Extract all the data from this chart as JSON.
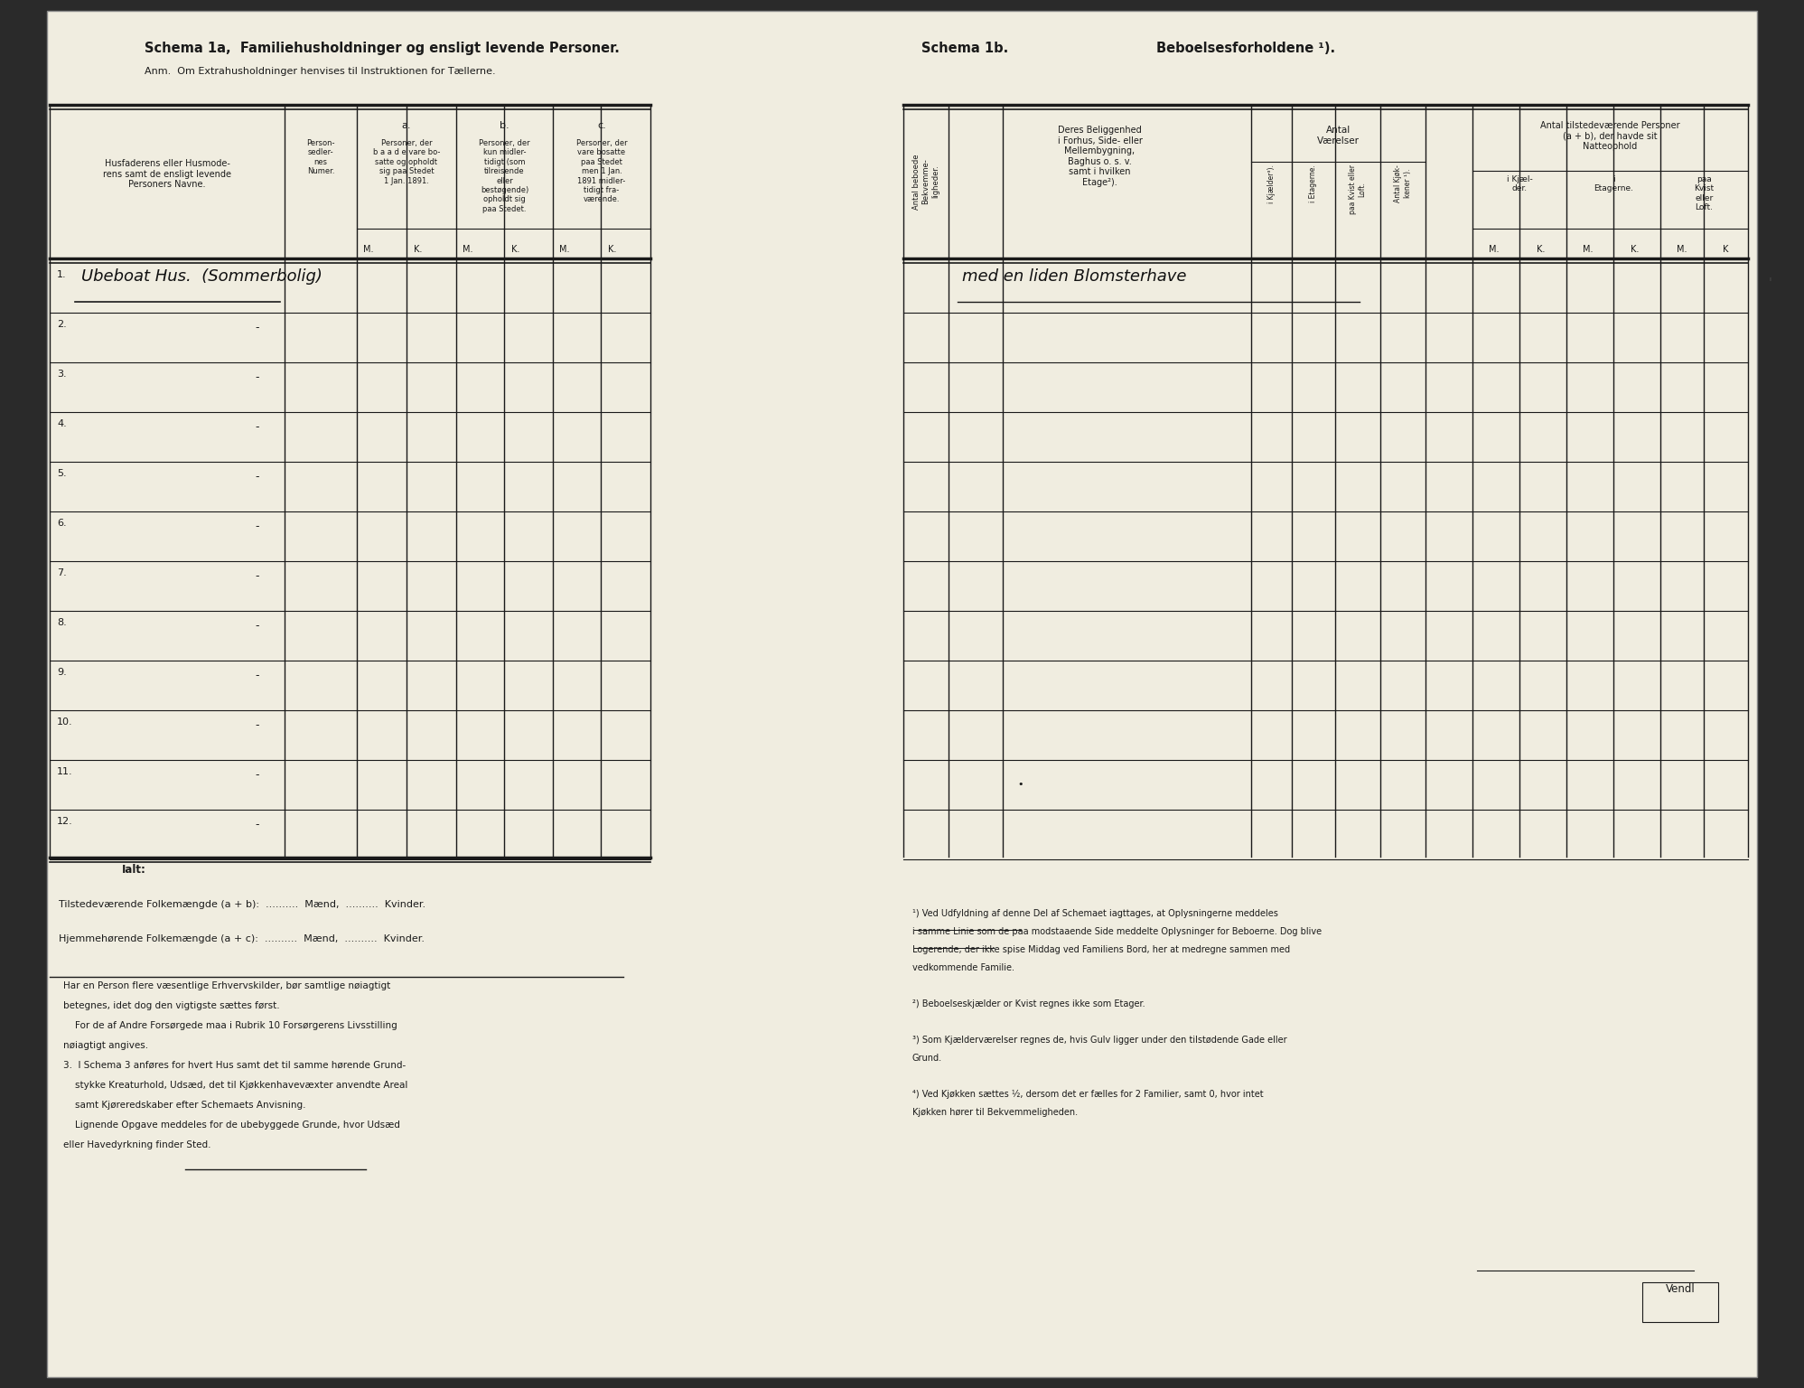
{
  "page_bg": "#f0ede0",
  "outer_bg": "#2a2a2a",
  "text_color": "#1a1a1a",
  "line_color": "#1a1a1a",
  "title_left": "Schema 1a,  Familiehusholdninger og ensligt levende Personer.",
  "anm_left": "Anm.  Om Extrahusholdninger henvises til Instruktionen for Tællerne.",
  "title_right_1": "Schema 1b.",
  "title_right_2": "Beboelsesforholdene ¹).",
  "row_numbers": [
    "1.",
    "2.",
    "3.",
    "4.",
    "5.",
    "6.",
    "7.",
    "8.",
    "9.",
    "10.",
    "11.",
    "12."
  ],
  "row1_name_left": "Ubeboat Hus.  (Sommerbolig)",
  "ialt_label": "Ialt:",
  "tilstedev_line": "Tilstedeværende Folkemængde (a + b):  ..........  Mænd,  ..........  Kvinder.",
  "hjemmeh_line": "Hjemmehørende Folkemængde (a + c):  ..........  Mænd,  ..........  Kvinder.",
  "fn_left_1": "Har en Person flere væsentlige Erhvervskilder, bør samtlige nøiagtigt",
  "fn_left_2": "betegnes, idet dog den vigtigste sættes først.",
  "fn_left_3": "    For de af Andre Forsørgede maa i Rubrik 10 Forsørgerens Livsstilling",
  "fn_left_4": "nøiagtigt angives.",
  "fn_left_5": "3.  I Schema 3 anføres for hvert Hus samt det til samme hørende Grund-",
  "fn_left_6": "    stykke Kreaturhold, Udsæd, det til Kjøkkenhavevæxter anvendte Areal",
  "fn_left_7": "    samt Kjøreredskaber efter Schemaets Anvisning.",
  "fn_left_8": "    Lignende Opgave meddeles for de ubebyggede Grunde, hvor Udsæd",
  "fn_left_9": "eller Havedyrkning finder Sted.",
  "right_row1_text": "med en liden Blomsterhave",
  "fn_right_1": "¹) Ved Udfyldning af denne Del af Schemaet iagttages, at Oplysningerne meddeles",
  "fn_right_2": "i samme Linie som de paa modstaaende Side meddelte Oplysninger for Beboerne. Dog blive",
  "fn_right_3": "Logerende, der ikke spise Middag ved Familiens Bord, her at medregne sammen med",
  "fn_right_4": "vedkommende Familie.",
  "fn_right_5": "²) Beboelseskjælder or Kvist regnes ikke som Etager.",
  "fn_right_6": "³) Som Kjælderværelser regnes de, hvis Gulv ligger under den tilstødende Gade eller",
  "fn_right_7": "Grund.",
  "fn_right_8": "⁴) Ved Kjøkken sættes ½, dersom det er fælles for 2 Familier, samt 0, hvor intet",
  "fn_right_9": "Kjøkken hører til Bekvemmeligheden.",
  "vendl_text": "Vendl"
}
